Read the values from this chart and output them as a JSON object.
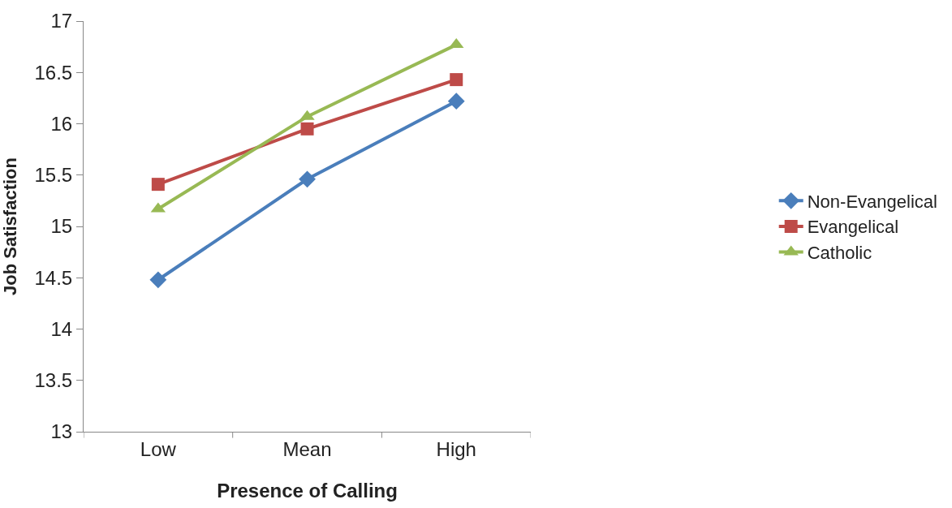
{
  "chart_data": {
    "type": "line",
    "xlabel": "Presence of Calling",
    "ylabel": "Job Satisfaction",
    "categories": [
      "Low",
      "Mean",
      "High"
    ],
    "series": [
      {
        "name": "Non-Evangelical",
        "color": "#4a7ebb",
        "marker": "diamond",
        "values": [
          14.48,
          15.46,
          16.22
        ]
      },
      {
        "name": "Evangelical",
        "color": "#be4b48",
        "marker": "square",
        "values": [
          15.41,
          15.95,
          16.43
        ]
      },
      {
        "name": "Catholic",
        "color": "#98b954",
        "marker": "triangle",
        "values": [
          15.17,
          16.07,
          16.77
        ]
      }
    ],
    "ylim": [
      13,
      17
    ],
    "yticks": [
      13,
      13.5,
      14,
      14.5,
      15,
      15.5,
      16,
      16.5,
      17
    ],
    "legend": "right",
    "line_style": "solid"
  }
}
